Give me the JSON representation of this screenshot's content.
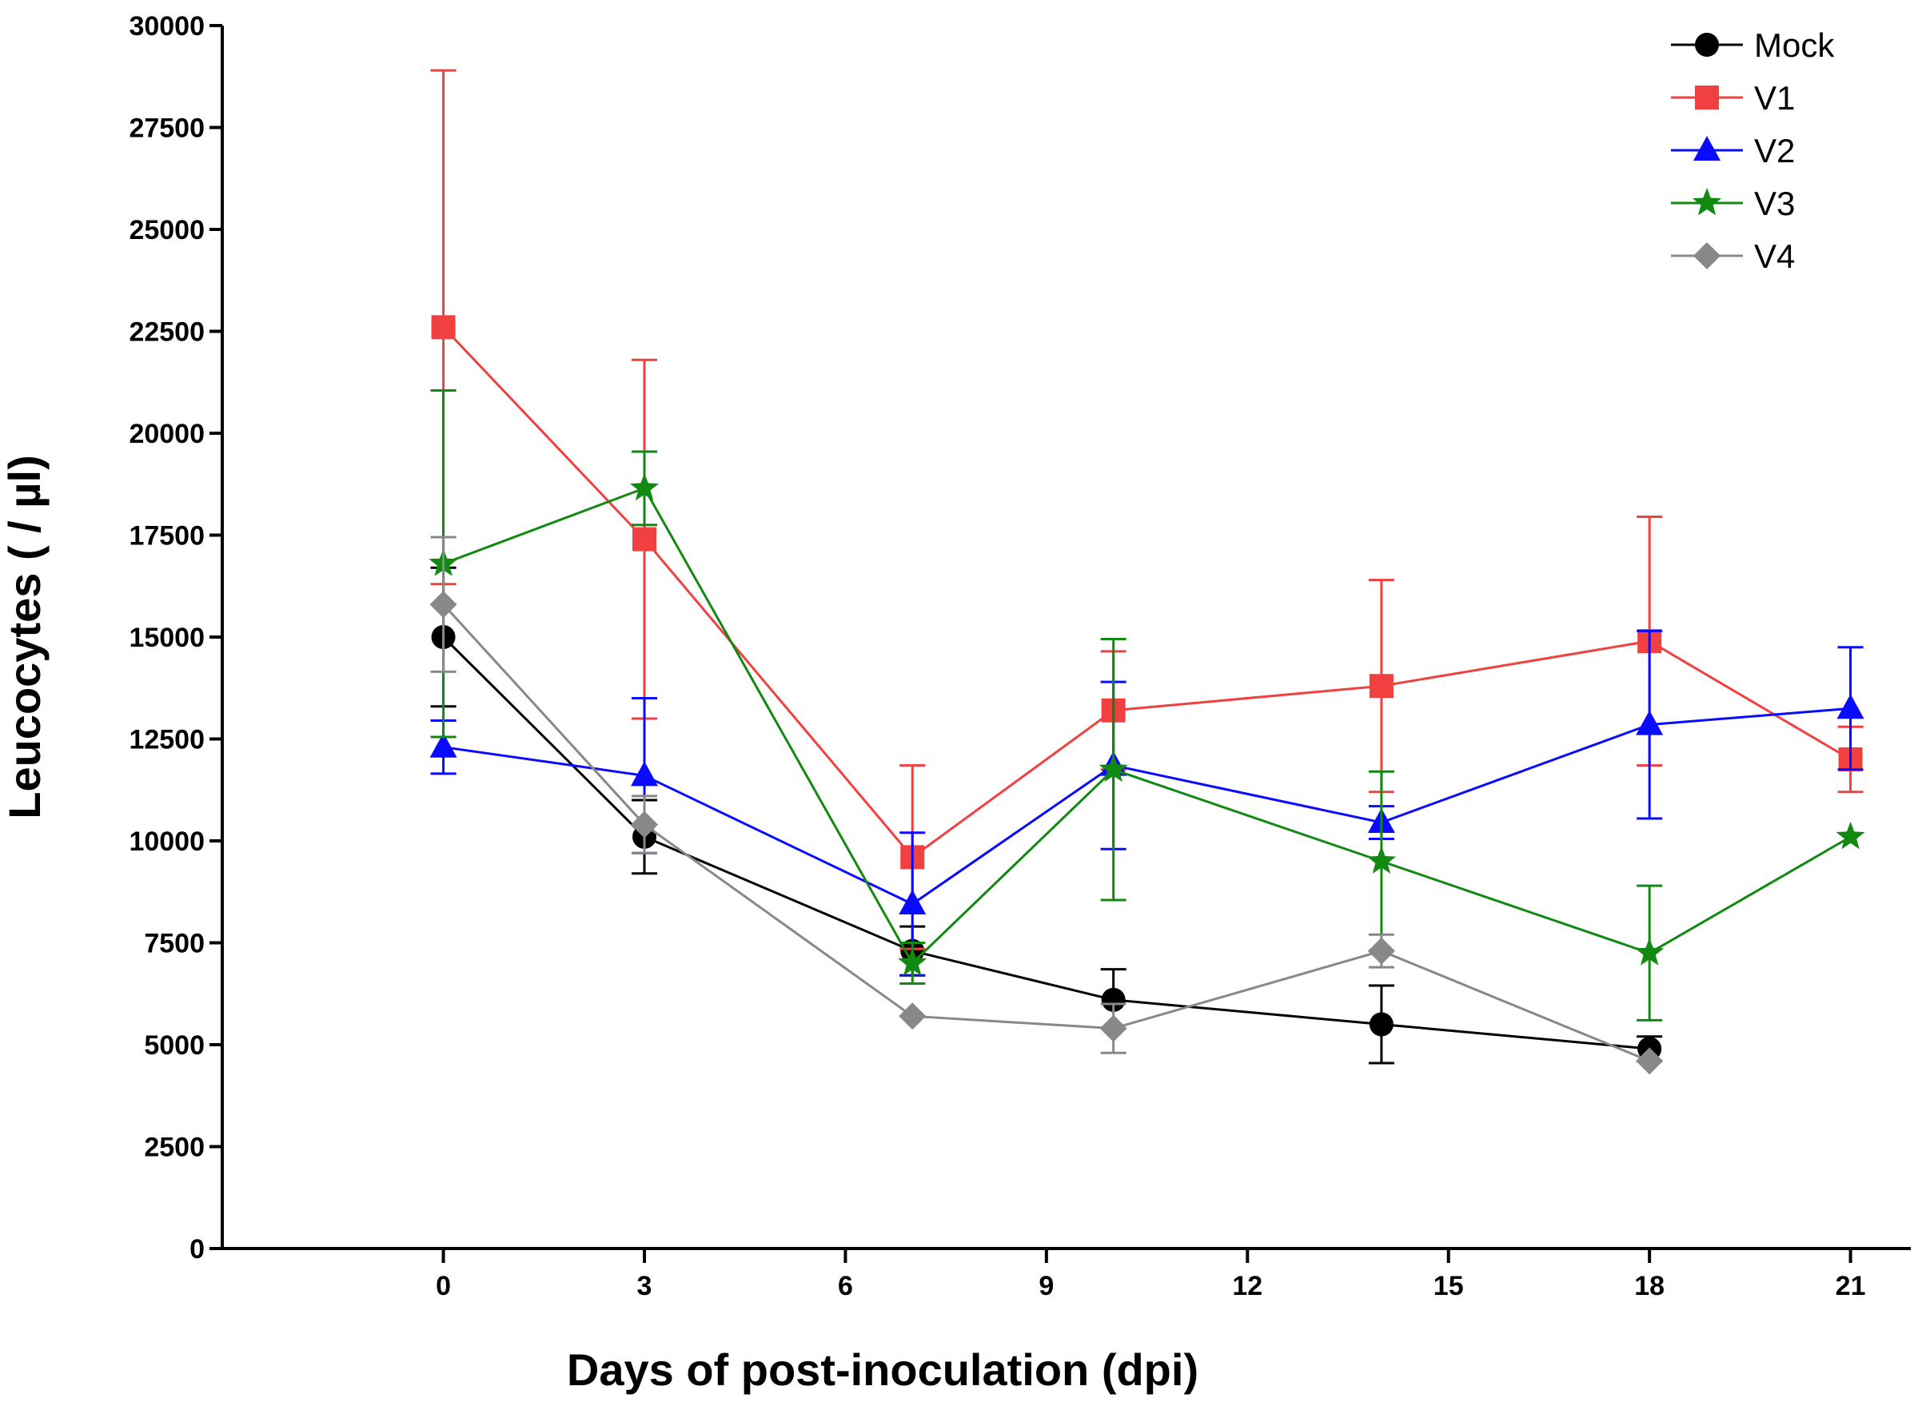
{
  "chart_data": {
    "type": "line",
    "title": "",
    "xlabel": "Days of post-inoculation (dpi)",
    "ylabel": "Leucocytes ( / µl)",
    "xlim": [
      -3.3,
      21.9
    ],
    "ylim": [
      0,
      30000
    ],
    "x_ticks": [
      0,
      3,
      6,
      9,
      12,
      15,
      18,
      21
    ],
    "x_tick_labels": [
      "0",
      "3",
      "6",
      "9",
      "12",
      "15",
      "18",
      "21"
    ],
    "y_ticks": [
      0,
      2500,
      5000,
      7500,
      10000,
      12500,
      15000,
      17500,
      20000,
      22500,
      25000,
      27500,
      30000
    ],
    "y_tick_labels": [
      "0",
      "2500",
      "5000",
      "7500",
      "10000",
      "12500",
      "15000",
      "17500",
      "20000",
      "22500",
      "25000",
      "27500",
      "30000"
    ],
    "grid": false,
    "legend_position": "top-right",
    "series": [
      {
        "name": "Mock",
        "color": "#000000",
        "marker": "circle",
        "x": [
          0,
          3,
          7,
          10,
          14,
          18
        ],
        "y": [
          15000,
          10100,
          7300,
          6100,
          5500,
          4900
        ],
        "err_up": [
          1700,
          900,
          600,
          750,
          950,
          300
        ],
        "err_down": [
          1700,
          900,
          600,
          0,
          950,
          300
        ]
      },
      {
        "name": "V1",
        "color": "#f04040",
        "marker": "square",
        "x": [
          0,
          3,
          7,
          10,
          14,
          18,
          21
        ],
        "y": [
          22600,
          17400,
          9600,
          13200,
          13800,
          14900,
          12000
        ],
        "err_up": [
          6300,
          4400,
          2250,
          1450,
          2600,
          3050,
          800
        ],
        "err_down": [
          6300,
          4400,
          2250,
          1450,
          2600,
          3050,
          800
        ]
      },
      {
        "name": "V2",
        "color": "#0a0aff",
        "marker": "triangle",
        "x": [
          0,
          3,
          7,
          10,
          14,
          18,
          21
        ],
        "y": [
          12300,
          11600,
          8450,
          11850,
          10450,
          12850,
          13250
        ],
        "err_up": [
          650,
          1900,
          1750,
          2050,
          400,
          2300,
          1500
        ],
        "err_down": [
          650,
          1900,
          1750,
          2050,
          400,
          2300,
          1500
        ]
      },
      {
        "name": "V3",
        "color": "#128a12",
        "marker": "star",
        "x": [
          0,
          3,
          7,
          10,
          14,
          18,
          21
        ],
        "y": [
          16800,
          18650,
          7000,
          11750,
          9500,
          7250,
          10100
        ],
        "err_up": [
          4250,
          900,
          500,
          3200,
          2200,
          1650,
          0
        ],
        "err_down": [
          4250,
          900,
          500,
          3200,
          2200,
          1650,
          0
        ]
      },
      {
        "name": "V4",
        "color": "#888888",
        "marker": "diamond",
        "x": [
          0,
          3,
          7,
          10,
          14,
          18
        ],
        "y": [
          15800,
          10400,
          5700,
          5400,
          7300,
          4600
        ],
        "err_up": [
          1650,
          700,
          0,
          600,
          400,
          0
        ],
        "err_down": [
          1650,
          700,
          0,
          600,
          400,
          0
        ]
      }
    ]
  }
}
